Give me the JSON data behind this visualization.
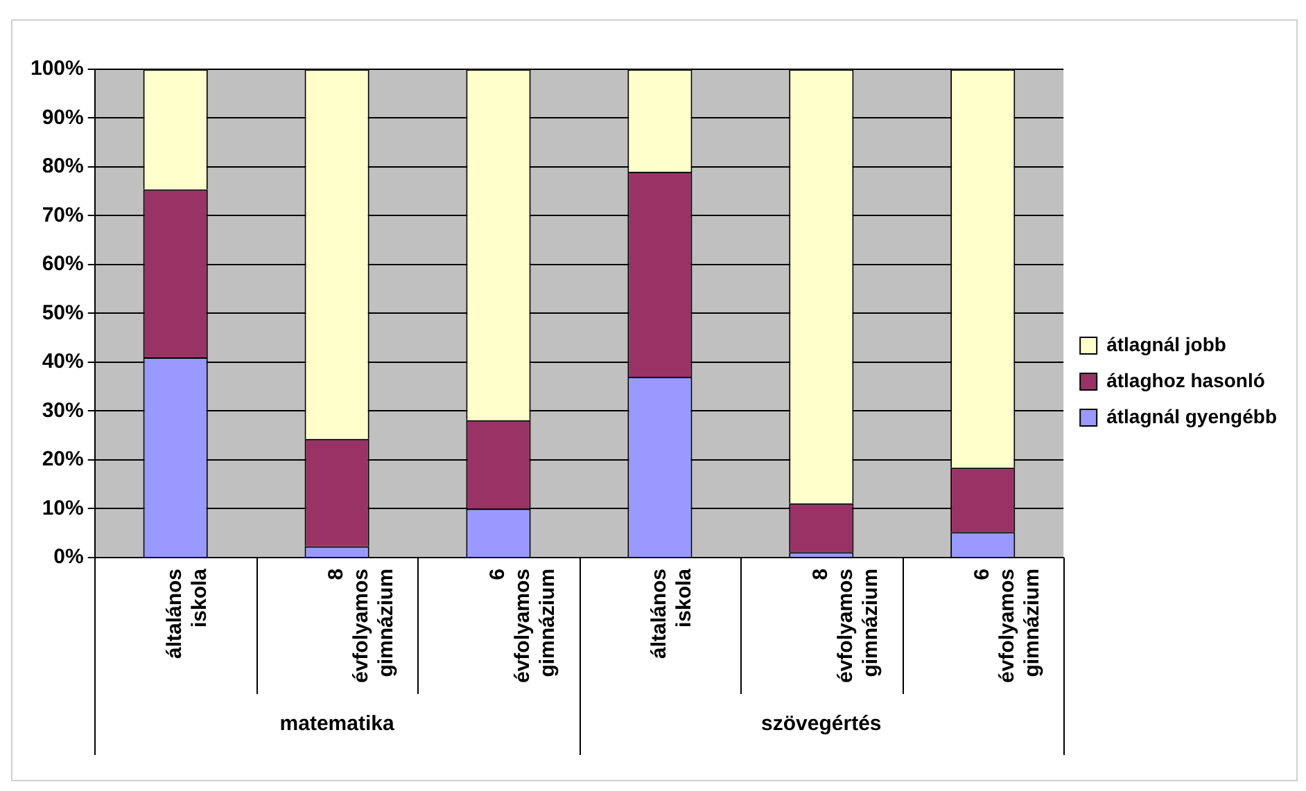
{
  "chart_data": {
    "type": "bar",
    "stacked": true,
    "categories": [
      "általános iskola",
      "8 évfolyamos gimnázium",
      "6 évfolyamos gimnázium",
      "általános iskola",
      "8 évfolyamos gimnázium",
      "6 évfolyamos gimnázium"
    ],
    "series": [
      {
        "name": "átlagnál gyengébb",
        "color": "#9999ff",
        "values": [
          41,
          2.3,
          10,
          37,
          1.1,
          5.2
        ]
      },
      {
        "name": "átlaghoz hasonló",
        "color": "#993366",
        "values": [
          34.4,
          22,
          18.1,
          42,
          10,
          13.2
        ]
      },
      {
        "name": "átlagnál jobb",
        "color": "#ffffcc",
        "values": [
          24.6,
          75.7,
          71.9,
          21,
          88.9,
          81.6
        ]
      }
    ],
    "ylim": [
      0,
      100
    ],
    "yticks": [
      {
        "value": 0,
        "label": "0%"
      },
      {
        "value": 10,
        "label": "10%"
      },
      {
        "value": 20,
        "label": "20%"
      },
      {
        "value": 30,
        "label": "30%"
      },
      {
        "value": 40,
        "label": "40%"
      },
      {
        "value": 50,
        "label": "50%"
      },
      {
        "value": 60,
        "label": "60%"
      },
      {
        "value": 70,
        "label": "70%"
      },
      {
        "value": 80,
        "label": "80%"
      },
      {
        "value": 90,
        "label": "90%"
      },
      {
        "value": 100,
        "label": "100%"
      }
    ],
    "grid": "y",
    "legend": "right",
    "annotations": [
      "matematika",
      "szövegértés"
    ]
  }
}
